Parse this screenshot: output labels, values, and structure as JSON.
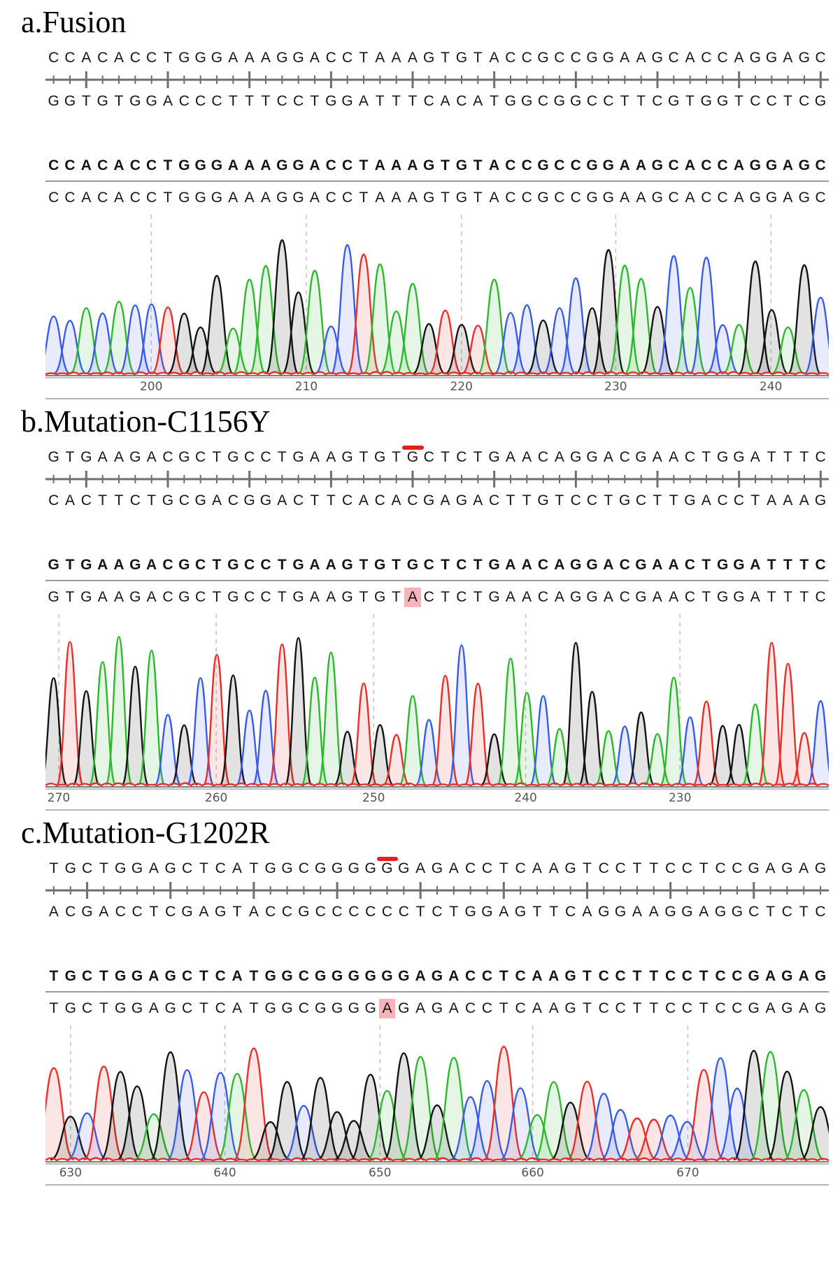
{
  "figure": {
    "base_colors": {
      "A": "#2eb82e",
      "C": "#3a5de8",
      "G": "#141414",
      "T": "#e8302a"
    },
    "accent_red": "#e51f1f",
    "highlight_pink": "#f6b3b9",
    "ruler_color": "#6e6e6e",
    "dash_color": "#c2c2c2",
    "tick_label_color": "#555555"
  },
  "chart_data": [
    {
      "type": "area",
      "panel_label": "a",
      "title": "a.Fusion",
      "top_strand": "CCACACCTGGGAAAGGACCTAAAGTGTACCGCCGGAAGCACCAGGAGC",
      "bottom_strand": "GGTGTGGACCCTTTCCTGGATTTCACATGGCGGCCTTCGTGGTCCTCG",
      "consensus": "CCACACCTGGGAAAGGACCTAAAGTGTACCGCCGGAAGCACCAGGAGC",
      "read": "CCACACCTGGGAAAGGACCTAAAGTGTACCGCCGGAAGCACCAGGAGC",
      "x_ticks": {
        "labels": [
          "200",
          "210",
          "220",
          "230",
          "240"
        ],
        "fractions": [
          0.135,
          0.333,
          0.531,
          0.728,
          0.926
        ]
      },
      "marker": {
        "kind": "line",
        "index": 24
      },
      "mutation": null,
      "chrom_height": 238
    },
    {
      "type": "area",
      "panel_label": "b",
      "title": "b.Mutation-C1156Y",
      "top_strand": "GTGAAGACGCTGCCTGAAGTGTGCTCTGAACAGGACGAACTGGATTTC",
      "bottom_strand": "CACTTCTGCGACGGACTTCACACGAGACTTGTCCTGCTTGACCTAAAG",
      "consensus": "GTGAAGACGCTGCCTGAAGTGTGCTCTGAACAGGACGAACTGGATTTC",
      "read": "GTGAAGACGCTGCCTGAAGTGTACTCTGAACAGGACGAACTGGATTTC",
      "x_ticks": {
        "labels": [
          "270",
          "260",
          "250",
          "240",
          "230"
        ],
        "fractions": [
          0.017,
          0.218,
          0.419,
          0.613,
          0.81
        ]
      },
      "marker": {
        "kind": "box",
        "index": 22
      },
      "mutation": {
        "index": 22,
        "ref": "G",
        "alt": "A"
      },
      "chrom_height": 255
    },
    {
      "type": "area",
      "panel_label": "c",
      "title": "c.Mutation-G1202R",
      "top_strand": "TGCTGGAGCTCATGGCGGGGGGAGACCTCAAGTCCTTCCTCCGAGAG",
      "bottom_strand": "ACGACCTCGAGTACCGCCCCCCTCTGGAGTTCAGGAAGGAGGCTCTC",
      "consensus": "TGCTGGAGCTCATGGCGGGGGGAGACCTCAAGTCCTTCCTCCGAGAG",
      "read": "TGCTGGAGCTCATGGCGGGGAGAGACCTCAAGTCCTTCCTCCGAGAG",
      "x_ticks": {
        "labels": [
          "630",
          "640",
          "650",
          "660",
          "670"
        ],
        "fractions": [
          0.032,
          0.229,
          0.427,
          0.622,
          0.82
        ]
      },
      "marker": {
        "kind": "box",
        "index": 20
      },
      "mutation": {
        "index": 20,
        "ref": "G",
        "alt": "A"
      },
      "chrom_height": 203
    }
  ]
}
